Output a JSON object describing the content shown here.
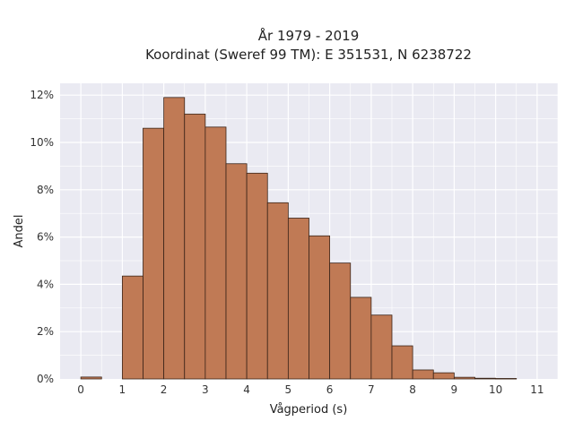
{
  "chart_data": {
    "type": "bar",
    "title": "År 1979 - 2019",
    "subtitle": "Koordinat (Sweref 99 TM): E 351531, N 6238722",
    "xlabel": "Vågperiod (s)",
    "ylabel": "Andel",
    "xlim": [
      -0.5,
      11.5
    ],
    "ylim": [
      0,
      12.5
    ],
    "x_ticks": [
      0,
      1,
      2,
      3,
      4,
      5,
      6,
      7,
      8,
      9,
      10,
      11
    ],
    "y_ticks": [
      0,
      2,
      4,
      6,
      8,
      10,
      12
    ],
    "y_tick_labels": [
      "0%",
      "2%",
      "4%",
      "6%",
      "8%",
      "10%",
      "12%"
    ],
    "bin_width": 0.5,
    "bins": [
      {
        "x0": 0.0,
        "value": 0.08
      },
      {
        "x0": 1.0,
        "value": 4.35
      },
      {
        "x0": 1.5,
        "value": 10.6
      },
      {
        "x0": 2.0,
        "value": 11.9
      },
      {
        "x0": 2.5,
        "value": 11.2
      },
      {
        "x0": 3.0,
        "value": 10.65
      },
      {
        "x0": 3.5,
        "value": 9.1
      },
      {
        "x0": 4.0,
        "value": 8.7
      },
      {
        "x0": 4.5,
        "value": 7.45
      },
      {
        "x0": 5.0,
        "value": 6.8
      },
      {
        "x0": 5.5,
        "value": 6.05
      },
      {
        "x0": 6.0,
        "value": 4.9
      },
      {
        "x0": 6.5,
        "value": 3.45
      },
      {
        "x0": 7.0,
        "value": 2.7
      },
      {
        "x0": 7.5,
        "value": 1.4
      },
      {
        "x0": 8.0,
        "value": 0.38
      },
      {
        "x0": 8.5,
        "value": 0.26
      },
      {
        "x0": 9.0,
        "value": 0.07
      },
      {
        "x0": 9.5,
        "value": 0.03
      },
      {
        "x0": 10.0,
        "value": 0.02
      }
    ],
    "bar_color": "#c07a55",
    "bar_edge_color": "#3a2418",
    "background_color": "#eaeaf2",
    "grid": true,
    "grid_color": "#ffffff",
    "legend": false
  }
}
